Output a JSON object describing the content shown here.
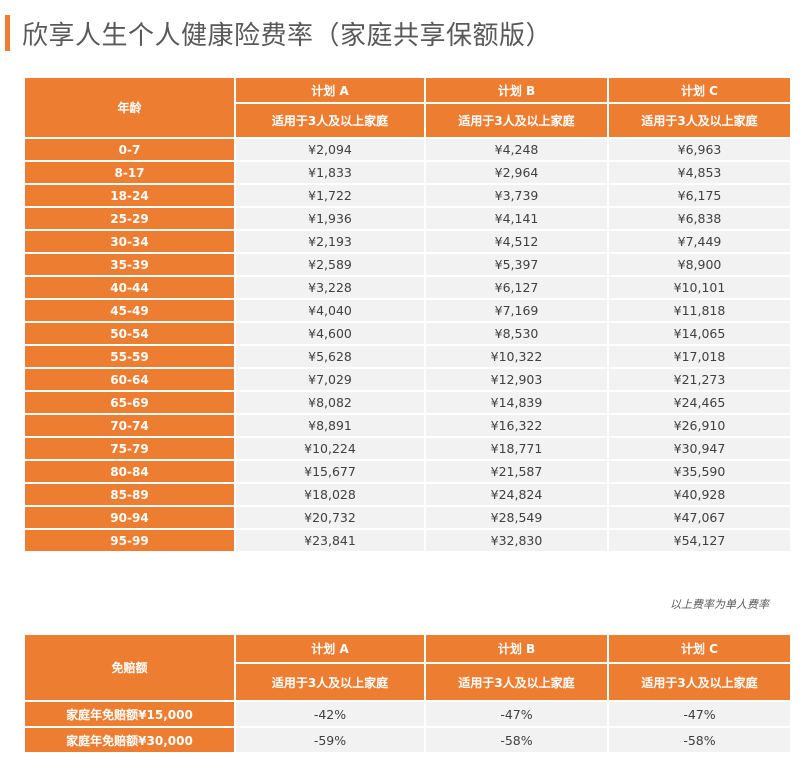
{
  "title": "欣享人生个人健康险费率（家庭共享保额版）",
  "rate_table": {
    "age_header": "年龄",
    "plans": [
      {
        "name": "计划 A",
        "sub": "适用于3人及以上家庭"
      },
      {
        "name": "计划 B",
        "sub": "适用于3人及以上家庭"
      },
      {
        "name": "计划 C",
        "sub": "适用于3人及以上家庭"
      }
    ],
    "rows": [
      {
        "age": "0-7",
        "a": "¥2,094",
        "b": "¥4,248",
        "c": "¥6,963"
      },
      {
        "age": "8-17",
        "a": "¥1,833",
        "b": "¥2,964",
        "c": "¥4,853"
      },
      {
        "age": "18-24",
        "a": "¥1,722",
        "b": "¥3,739",
        "c": "¥6,175"
      },
      {
        "age": "25-29",
        "a": "¥1,936",
        "b": "¥4,141",
        "c": "¥6,838"
      },
      {
        "age": "30-34",
        "a": "¥2,193",
        "b": "¥4,512",
        "c": "¥7,449"
      },
      {
        "age": "35-39",
        "a": "¥2,589",
        "b": "¥5,397",
        "c": "¥8,900"
      },
      {
        "age": "40-44",
        "a": "¥3,228",
        "b": "¥6,127",
        "c": "¥10,101"
      },
      {
        "age": "45-49",
        "a": "¥4,040",
        "b": "¥7,169",
        "c": "¥11,818"
      },
      {
        "age": "50-54",
        "a": "¥4,600",
        "b": "¥8,530",
        "c": "¥14,065"
      },
      {
        "age": "55-59",
        "a": "¥5,628",
        "b": "¥10,322",
        "c": "¥17,018"
      },
      {
        "age": "60-64",
        "a": "¥7,029",
        "b": "¥12,903",
        "c": "¥21,273"
      },
      {
        "age": "65-69",
        "a": "¥8,082",
        "b": "¥14,839",
        "c": "¥24,465"
      },
      {
        "age": "70-74",
        "a": "¥8,891",
        "b": "¥16,322",
        "c": "¥26,910"
      },
      {
        "age": "75-79",
        "a": "¥10,224",
        "b": "¥18,771",
        "c": "¥30,947"
      },
      {
        "age": "80-84",
        "a": "¥15,677",
        "b": "¥21,587",
        "c": "¥35,590"
      },
      {
        "age": "85-89",
        "a": "¥18,028",
        "b": "¥24,824",
        "c": "¥40,928"
      },
      {
        "age": "90-94",
        "a": "¥20,732",
        "b": "¥28,549",
        "c": "¥47,067"
      },
      {
        "age": "95-99",
        "a": "¥23,841",
        "b": "¥32,830",
        "c": "¥54,127"
      }
    ],
    "note": "以上费率为单人费率"
  },
  "deductible_table": {
    "header": "免赔额",
    "plans": [
      {
        "name": "计划 A",
        "sub": "适用于3人及以上家庭"
      },
      {
        "name": "计划 B",
        "sub": "适用于3人及以上家庭"
      },
      {
        "name": "计划 C",
        "sub": "适用于3人及以上家庭"
      }
    ],
    "rows": [
      {
        "label": "家庭年免赔额¥15,000",
        "a": "-42%",
        "b": "-47%",
        "c": "-47%"
      },
      {
        "label": "家庭年免赔额¥30,000",
        "a": "-59%",
        "b": "-58%",
        "c": "-58%"
      }
    ]
  },
  "colors": {
    "accent": "#ed7d31",
    "cell_bg": "#f2f2f2",
    "text": "#404040"
  }
}
